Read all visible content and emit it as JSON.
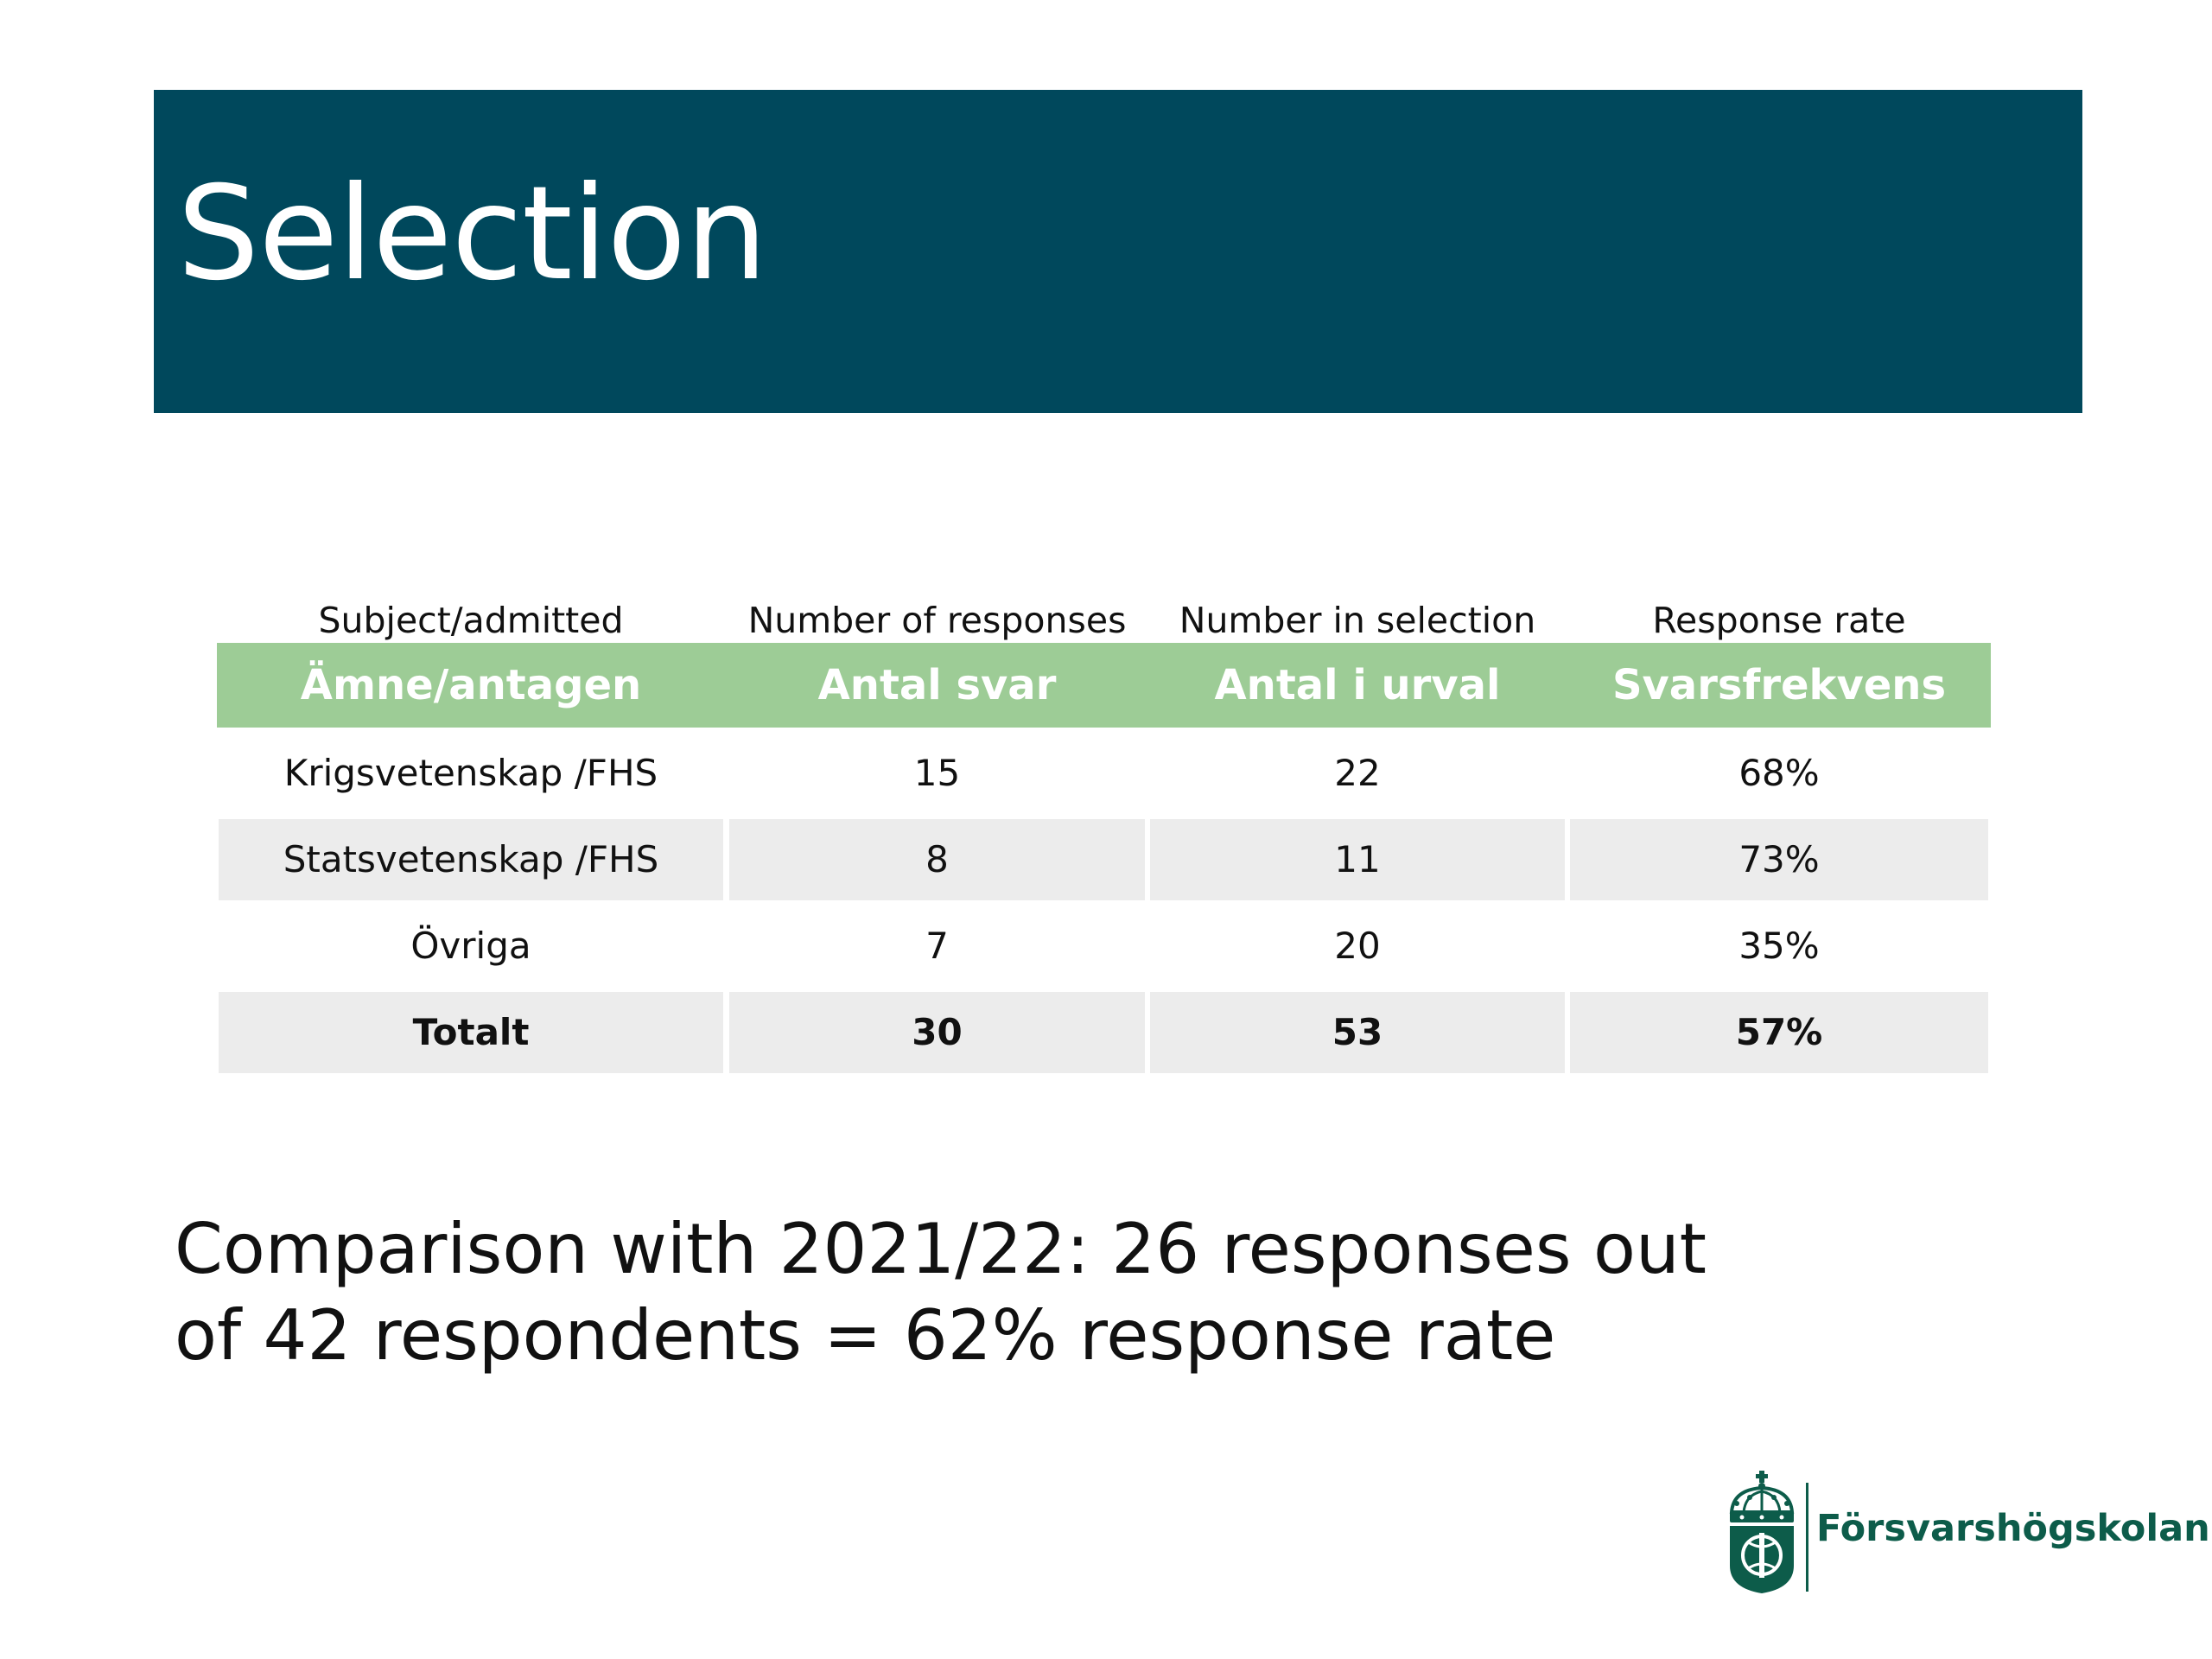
{
  "slide": {
    "title": "Selection",
    "colors": {
      "title_band": "#00485c",
      "table_header": "#9dcc96",
      "row_shade": "#ececec",
      "brand_green": "#0d5c4a"
    }
  },
  "table": {
    "english_headers": [
      "Subject/admitted",
      "Number of responses",
      "Number in selection",
      "Response rate"
    ],
    "headers": [
      "Ämne/antagen",
      "Antal svar",
      "Antal i urval",
      "Svarsfrekvens"
    ],
    "rows": [
      [
        "Krigsvetenskap /FHS",
        "15",
        "22",
        "68%"
      ],
      [
        "Statsvetenskap /FHS",
        "8",
        "11",
        "73%"
      ],
      [
        "Övriga",
        "7",
        "20",
        "35%"
      ],
      [
        "Totalt",
        "30",
        "53",
        "57%"
      ]
    ]
  },
  "comparison": {
    "line1": "Comparison with 2021/22: 26 responses out",
    "line2": "of 42 respondents = 62% response rate"
  },
  "logo": {
    "text": "Försvarshögskolan",
    "emblem_icon": "crown-shield-emblem-icon"
  }
}
